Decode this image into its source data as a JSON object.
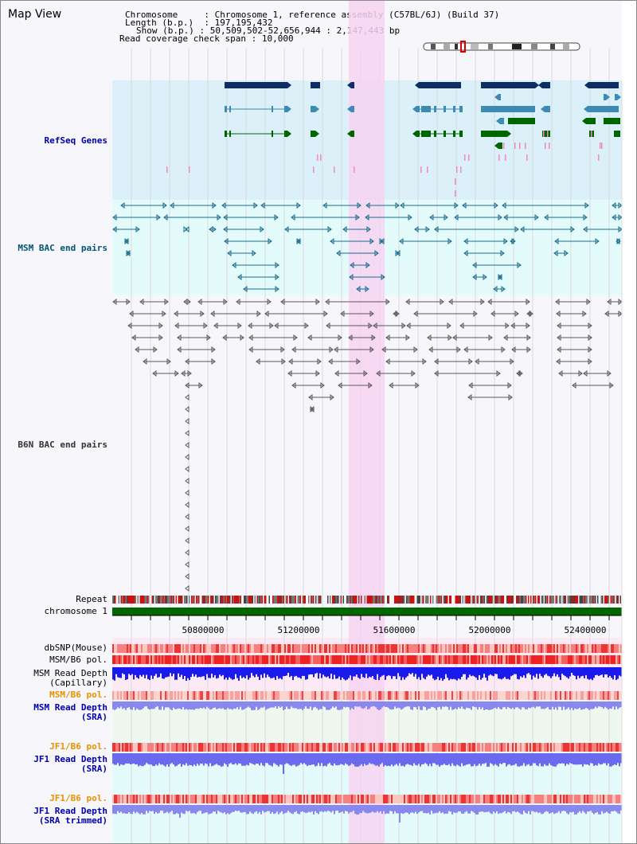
{
  "page": {
    "title": "Map View"
  },
  "info": {
    "chromosome_key": "Chromosome",
    "chromosome_val": "Chromosome 1, reference assembly (C57BL/6J) (Build 37)",
    "length_key": "Length (b.p.)",
    "length_val": "197,195,432",
    "show_key": "Show (b.p.)",
    "show_val": "50,509,502-52,656,944 : 2,147,443 bp",
    "span_key": "Read coverage check span",
    "span_val": "10,000"
  },
  "tracks": {
    "refseq": {
      "label": "RefSeq Genes",
      "color": "#0000aa"
    },
    "msm_bac": {
      "label": "MSM BAC end pairs",
      "color": "#005577"
    },
    "b6n_bac": {
      "label": "B6N BAC end pairs",
      "color": "#333333"
    },
    "repeat": {
      "label": "Repeat"
    },
    "chrom": {
      "label": "chromosome 1"
    },
    "dbsnp": {
      "label": "dbSNP(Mouse)"
    },
    "msm_pol1": {
      "label": "MSM/B6 pol."
    },
    "msm_depth_cap": {
      "label": "MSM Read Depth\n(Capillary)"
    },
    "msm_pol2": {
      "label": "MSM/B6 pol.",
      "color": "#e89000"
    },
    "msm_depth_sra": {
      "label": "MSM Read Depth\n(SRA)",
      "color": "#0000aa"
    },
    "jf1_pol1": {
      "label": "JF1/B6 pol.",
      "color": "#e89000"
    },
    "jf1_depth_sra": {
      "label": "JF1 Read Depth\n(SRA)",
      "color": "#0000aa"
    },
    "jf1_pol2": {
      "label": "JF1/B6 pol.",
      "color": "#e89000"
    },
    "jf1_depth_trim": {
      "label": "JF1 Read Depth\n(SRA trimmed)",
      "color": "#0000aa"
    }
  },
  "axis": {
    "ticks": [
      "50800000",
      "51200000",
      "51600000",
      "52000000",
      "52400000"
    ]
  },
  "colors": {
    "highlight": "#f7d4f1",
    "refseq_bg": "#dcf0fa",
    "bac_bg": "#e4fbfb",
    "gene_dark": "#0d2f66",
    "gene_mid": "#3d8ab5",
    "gene_green": "#006600",
    "pink": "#f08aba",
    "chrom_green": "#006600",
    "depth_blue": "#1a1aee",
    "depth_light": "#8888ee"
  }
}
